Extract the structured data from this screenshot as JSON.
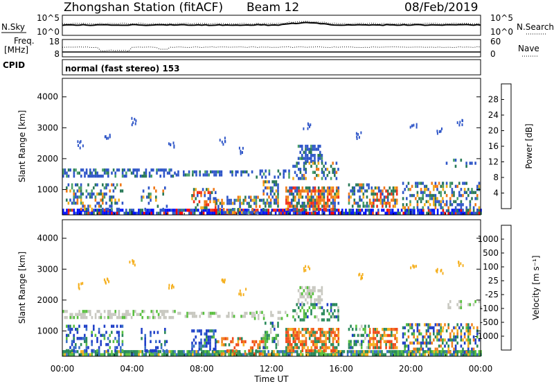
{
  "header": {
    "station": "Zhongshan Station (fitACF)",
    "beam": "Beam 12",
    "date": "08/Feb/2019"
  },
  "noise_panel": {
    "left_label": "N.Sky",
    "left_ticks": [
      "10^5",
      "10^0"
    ],
    "right_ticks": [
      "10^5",
      "10^0"
    ],
    "right_label": "N.Search"
  },
  "freq_panel": {
    "left_label_line1": "Freq.",
    "left_label_line2": "[MHz]",
    "left_ticks": [
      "18",
      "8"
    ],
    "right_ticks": [
      "60",
      "0"
    ],
    "right_label": "Nave"
  },
  "cpid_panel": {
    "label": "CPID",
    "text": "normal (fast stereo) 153"
  },
  "chart_data": [
    {
      "type": "heatmap",
      "name": "power",
      "ylabel": "Slant Range [km]",
      "ylim": [
        180,
        4600
      ],
      "yticks": [
        1000,
        2000,
        3000,
        4000
      ],
      "xlim": [
        0,
        24
      ],
      "colorbar_label": "Power [dB]",
      "colorbar_ticks": [
        "28",
        "24",
        "20",
        "16",
        "12",
        "8",
        "4"
      ],
      "colors": [
        "#0010ff",
        "#2f56c8",
        "#2a7a58",
        "#4aa06a",
        "#f2ae1e",
        "#f07a1a",
        "#f03018",
        "#ff0000"
      ]
    },
    {
      "type": "heatmap",
      "name": "velocity",
      "ylabel": "Slant Range [km]",
      "ylim": [
        180,
        4600
      ],
      "yticks": [
        1000,
        2000,
        3000,
        4000
      ],
      "xlim": [
        0,
        24
      ],
      "xlabel": "Time UT",
      "xtick_labels": [
        "00:00",
        "04:00",
        "08:00",
        "12:00",
        "16:00",
        "20:00",
        "00:00"
      ],
      "colorbar_label": "Velocity [m s⁻¹]",
      "colorbar_ticks": [
        "1000",
        "500",
        "100",
        "25",
        "-25",
        "-100",
        "-500",
        "-1000"
      ],
      "colors": [
        "#2040c8",
        "#3a70c8",
        "#2a8a5a",
        "#5ac040",
        "#c8c8c0",
        "#f5b020",
        "#f08020",
        "#f04a18",
        "#ff0000"
      ]
    }
  ]
}
